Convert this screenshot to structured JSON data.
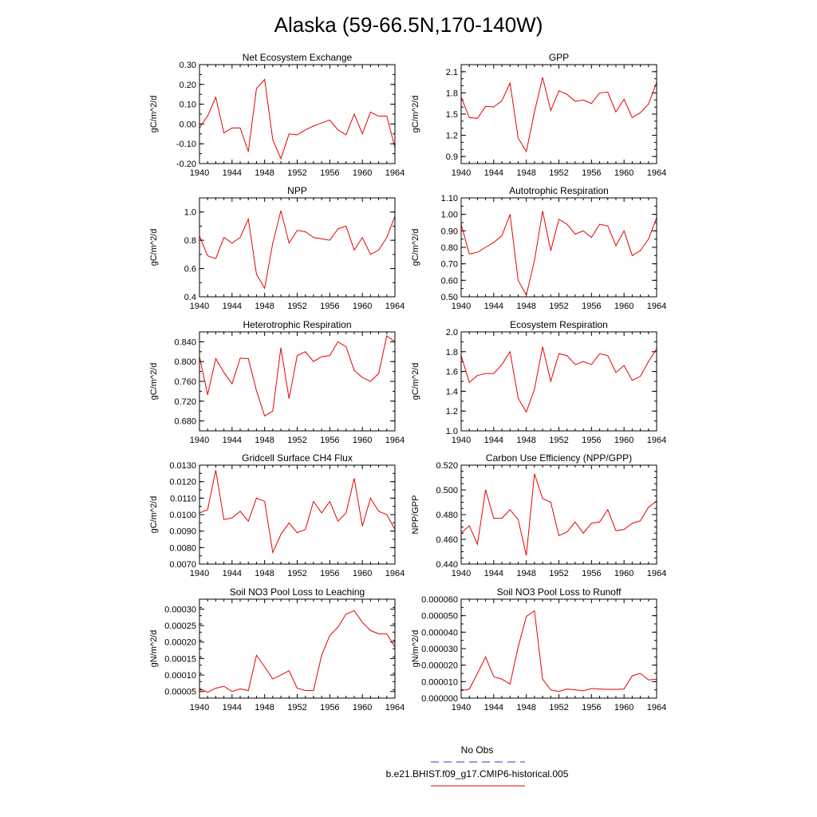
{
  "figure": {
    "title": "Alaska (59-66.5N,170-140W)"
  },
  "legend": {
    "entries": [
      {
        "label": "No Obs",
        "color": "#3333cc",
        "dashed": true
      },
      {
        "label": "b.e21.BHIST.f09_g17.CMIP6-historical.005",
        "color": "#e60000",
        "dashed": false
      }
    ]
  },
  "colors": {
    "series": "#e60000",
    "obs": "#3333cc"
  },
  "chart_data": [
    {
      "type": "line",
      "title": "Net Ecosystem Exchange",
      "ylabel": "gC/m^2/d",
      "xlim": [
        1940,
        1964
      ],
      "xticks": [
        "1940",
        "1944",
        "1948",
        "1952",
        "1956",
        "1960",
        "1964"
      ],
      "ylim": [
        -0.2,
        0.3
      ],
      "yticks": [
        "-0.20",
        "-0.10",
        "0.00",
        "0.10",
        "0.20",
        "0.30"
      ],
      "yminor": 0.05,
      "x": [
        1940,
        1941,
        1942,
        1943,
        1944,
        1945,
        1946,
        1947,
        1948,
        1949,
        1950,
        1951,
        1952,
        1953,
        1954,
        1955,
        1956,
        1957,
        1958,
        1959,
        1960,
        1961,
        1962,
        1963,
        1964
      ],
      "y": [
        -0.02,
        0.04,
        0.135,
        -0.045,
        -0.02,
        -0.02,
        -0.14,
        0.18,
        0.225,
        -0.08,
        -0.175,
        -0.05,
        -0.055,
        -0.03,
        -0.01,
        0.005,
        0.02,
        -0.03,
        -0.055,
        0.05,
        -0.05,
        0.06,
        0.04,
        0.04,
        -0.12
      ]
    },
    {
      "type": "line",
      "title": "GPP",
      "ylabel": "gC/m^2/d",
      "xlim": [
        1940,
        1964
      ],
      "xticks": [
        "1940",
        "1944",
        "1948",
        "1952",
        "1956",
        "1960",
        "1964"
      ],
      "ylim": [
        0.8,
        2.2
      ],
      "yticks": [
        "0.9",
        "1.2",
        "1.5",
        "1.8",
        "2.1"
      ],
      "yminor": 0.1,
      "x": [
        1940,
        1941,
        1942,
        1943,
        1944,
        1945,
        1946,
        1947,
        1948,
        1949,
        1950,
        1951,
        1952,
        1953,
        1954,
        1955,
        1956,
        1957,
        1958,
        1959,
        1960,
        1961,
        1962,
        1963,
        1964
      ],
      "y": [
        1.74,
        1.45,
        1.44,
        1.61,
        1.6,
        1.69,
        1.94,
        1.16,
        0.97,
        1.53,
        2.02,
        1.55,
        1.83,
        1.78,
        1.68,
        1.7,
        1.65,
        1.8,
        1.81,
        1.53,
        1.71,
        1.45,
        1.52,
        1.64,
        1.95
      ]
    },
    {
      "type": "line",
      "title": "NPP",
      "ylabel": "gC/m^2/d",
      "xlim": [
        1940,
        1964
      ],
      "xticks": [
        "1940",
        "1944",
        "1948",
        "1952",
        "1956",
        "1960",
        "1964"
      ],
      "ylim": [
        0.4,
        1.1
      ],
      "yticks": [
        "0.4",
        "0.6",
        "0.8",
        "1.0"
      ],
      "yminor": 0.1,
      "x": [
        1940,
        1941,
        1942,
        1943,
        1944,
        1945,
        1946,
        1947,
        1948,
        1949,
        1950,
        1951,
        1952,
        1953,
        1954,
        1955,
        1956,
        1957,
        1958,
        1959,
        1960,
        1961,
        1962,
        1963,
        1964
      ],
      "y": [
        0.83,
        0.69,
        0.67,
        0.82,
        0.78,
        0.82,
        0.95,
        0.56,
        0.46,
        0.78,
        1.01,
        0.78,
        0.87,
        0.86,
        0.82,
        0.81,
        0.8,
        0.88,
        0.9,
        0.73,
        0.82,
        0.7,
        0.73,
        0.82,
        0.97
      ]
    },
    {
      "type": "line",
      "title": "Autotrophic Respiration",
      "ylabel": "gC/m^2/d",
      "xlim": [
        1940,
        1964
      ],
      "xticks": [
        "1940",
        "1944",
        "1948",
        "1952",
        "1956",
        "1960",
        "1964"
      ],
      "ylim": [
        0.5,
        1.1
      ],
      "yticks": [
        "0.50",
        "0.60",
        "0.70",
        "0.80",
        "0.90",
        "1.00",
        "1.10"
      ],
      "yminor": 0.05,
      "x": [
        1940,
        1941,
        1942,
        1943,
        1944,
        1945,
        1946,
        1947,
        1948,
        1949,
        1950,
        1951,
        1952,
        1953,
        1954,
        1955,
        1956,
        1957,
        1958,
        1959,
        1960,
        1961,
        1962,
        1963,
        1964
      ],
      "y": [
        0.94,
        0.76,
        0.77,
        0.8,
        0.83,
        0.87,
        1.0,
        0.6,
        0.51,
        0.72,
        1.02,
        0.78,
        0.97,
        0.94,
        0.88,
        0.9,
        0.86,
        0.94,
        0.93,
        0.81,
        0.9,
        0.75,
        0.78,
        0.85,
        0.98
      ]
    },
    {
      "type": "line",
      "title": "Heterotrophic Respiration",
      "ylabel": "gC/m^2/d",
      "xlim": [
        1940,
        1964
      ],
      "xticks": [
        "1940",
        "1944",
        "1948",
        "1952",
        "1956",
        "1960",
        "1964"
      ],
      "ylim": [
        0.66,
        0.86
      ],
      "yticks": [
        "0.680",
        "0.720",
        "0.760",
        "0.800",
        "0.840"
      ],
      "yminor": 0.02,
      "x": [
        1940,
        1941,
        1942,
        1943,
        1944,
        1945,
        1946,
        1947,
        1948,
        1949,
        1950,
        1951,
        1952,
        1953,
        1954,
        1955,
        1956,
        1957,
        1958,
        1959,
        1960,
        1961,
        1962,
        1963,
        1964
      ],
      "y": [
        0.81,
        0.733,
        0.806,
        0.778,
        0.755,
        0.807,
        0.806,
        0.741,
        0.69,
        0.7,
        0.828,
        0.725,
        0.812,
        0.82,
        0.8,
        0.81,
        0.812,
        0.84,
        0.83,
        0.782,
        0.768,
        0.76,
        0.776,
        0.852,
        0.84
      ]
    },
    {
      "type": "line",
      "title": "Ecosystem Respiration",
      "ylabel": "gC/m^2/d",
      "xlim": [
        1940,
        1964
      ],
      "xticks": [
        "1940",
        "1944",
        "1948",
        "1952",
        "1956",
        "1960",
        "1964"
      ],
      "ylim": [
        1.0,
        2.0
      ],
      "yticks": [
        "1.0",
        "1.2",
        "1.4",
        "1.6",
        "1.8",
        "2.0"
      ],
      "yminor": 0.1,
      "x": [
        1940,
        1941,
        1942,
        1943,
        1944,
        1945,
        1946,
        1947,
        1948,
        1949,
        1950,
        1951,
        1952,
        1953,
        1954,
        1955,
        1956,
        1957,
        1958,
        1959,
        1960,
        1961,
        1962,
        1963,
        1964
      ],
      "y": [
        1.76,
        1.49,
        1.56,
        1.58,
        1.58,
        1.67,
        1.8,
        1.33,
        1.19,
        1.42,
        1.85,
        1.5,
        1.78,
        1.76,
        1.67,
        1.7,
        1.67,
        1.78,
        1.76,
        1.59,
        1.66,
        1.51,
        1.55,
        1.7,
        1.83
      ]
    },
    {
      "type": "line",
      "title": "Gridcell Surface CH4 Flux",
      "ylabel": "gC/m^2/d",
      "xlim": [
        1940,
        1964
      ],
      "xticks": [
        "1940",
        "1944",
        "1948",
        "1952",
        "1956",
        "1960",
        "1964"
      ],
      "ylim": [
        0.007,
        0.013
      ],
      "yticks": [
        "0.0070",
        "0.0080",
        "0.0090",
        "0.0100",
        "0.0110",
        "0.0120",
        "0.0130"
      ],
      "yminor": 0.0005,
      "x": [
        1940,
        1941,
        1942,
        1943,
        1944,
        1945,
        1946,
        1947,
        1948,
        1949,
        1950,
        1951,
        1952,
        1953,
        1954,
        1955,
        1956,
        1957,
        1958,
        1959,
        1960,
        1961,
        1962,
        1963,
        1964
      ],
      "y": [
        0.0101,
        0.0103,
        0.0127,
        0.0097,
        0.0098,
        0.0102,
        0.0096,
        0.011,
        0.0108,
        0.0077,
        0.0088,
        0.0095,
        0.0089,
        0.0091,
        0.0108,
        0.0101,
        0.0108,
        0.0096,
        0.0101,
        0.0122,
        0.0093,
        0.011,
        0.0102,
        0.01,
        0.0091
      ]
    },
    {
      "type": "line",
      "title": "Carbon Use Efficiency (NPP/GPP)",
      "ylabel": "NPP/GPP",
      "xlim": [
        1940,
        1964
      ],
      "xticks": [
        "1940",
        "1944",
        "1948",
        "1952",
        "1956",
        "1960",
        "1964"
      ],
      "ylim": [
        0.44,
        0.52
      ],
      "yticks": [
        "0.440",
        "0.460",
        "0.480",
        "0.500",
        "0.520"
      ],
      "yminor": 0.005,
      "x": [
        1940,
        1941,
        1942,
        1943,
        1944,
        1945,
        1946,
        1947,
        1948,
        1949,
        1950,
        1951,
        1952,
        1953,
        1954,
        1955,
        1956,
        1957,
        1958,
        1959,
        1960,
        1961,
        1962,
        1963,
        1964
      ],
      "y": [
        0.465,
        0.471,
        0.456,
        0.5,
        0.477,
        0.477,
        0.484,
        0.476,
        0.447,
        0.513,
        0.493,
        0.49,
        0.463,
        0.466,
        0.474,
        0.465,
        0.473,
        0.474,
        0.484,
        0.467,
        0.468,
        0.473,
        0.475,
        0.486,
        0.491
      ]
    },
    {
      "type": "line",
      "title": "Soil NO3 Pool Loss to Leaching",
      "ylabel": "gN/m^2/d",
      "xlim": [
        1940,
        1964
      ],
      "xticks": [
        "1940",
        "1944",
        "1948",
        "1952",
        "1956",
        "1960",
        "1964"
      ],
      "ylim": [
        3e-05,
        0.00033
      ],
      "yticks": [
        "0.00005",
        "0.00010",
        "0.00015",
        "0.00020",
        "0.00025",
        "0.00030"
      ],
      "yminor": 2.5e-05,
      "x": [
        1940,
        1941,
        1942,
        1943,
        1944,
        1945,
        1946,
        1947,
        1948,
        1949,
        1950,
        1951,
        1952,
        1953,
        1954,
        1955,
        1956,
        1957,
        1958,
        1959,
        1960,
        1961,
        1962,
        1963,
        1964
      ],
      "y": [
        6e-05,
        4.8e-05,
        6e-05,
        6.6e-05,
        5e-05,
        5.8e-05,
        5.3e-05,
        0.00016,
        0.000125,
        8.8e-05,
        0.0001,
        0.000113,
        6e-05,
        5.3e-05,
        5.3e-05,
        0.00016,
        0.00022,
        0.000245,
        0.000285,
        0.000295,
        0.00026,
        0.000235,
        0.000225,
        0.000225,
        0.000185
      ]
    },
    {
      "type": "line",
      "title": "Soil NO3 Pool Loss to Runoff",
      "ylabel": "gN/m^2/d",
      "xlim": [
        1940,
        1964
      ],
      "xticks": [
        "1940",
        "1944",
        "1948",
        "1952",
        "1956",
        "1960",
        "1964"
      ],
      "ylim": [
        0.0,
        6e-05
      ],
      "yticks": [
        "0.000000",
        "0.000010",
        "0.000020",
        "0.000030",
        "0.000040",
        "0.000050",
        "0.000060"
      ],
      "yminor": 5e-06,
      "x": [
        1940,
        1941,
        1942,
        1943,
        1944,
        1945,
        1946,
        1947,
        1948,
        1949,
        1950,
        1951,
        1952,
        1953,
        1954,
        1955,
        1956,
        1957,
        1958,
        1959,
        1960,
        1961,
        1962,
        1963,
        1964
      ],
      "y": [
        4.5e-06,
        5.5e-06,
        1.5e-05,
        2.5e-05,
        1.3e-05,
        1.15e-05,
        8.5e-06,
        3.1e-05,
        4.95e-05,
        5.3e-05,
        1.15e-05,
        5e-06,
        4e-06,
        5.5e-06,
        5e-06,
        4.5e-06,
        5.8e-06,
        5.5e-06,
        5.3e-06,
        5.3e-06,
        5.5e-06,
        1.35e-05,
        1.5e-05,
        1.1e-05,
        1.15e-05
      ]
    }
  ]
}
